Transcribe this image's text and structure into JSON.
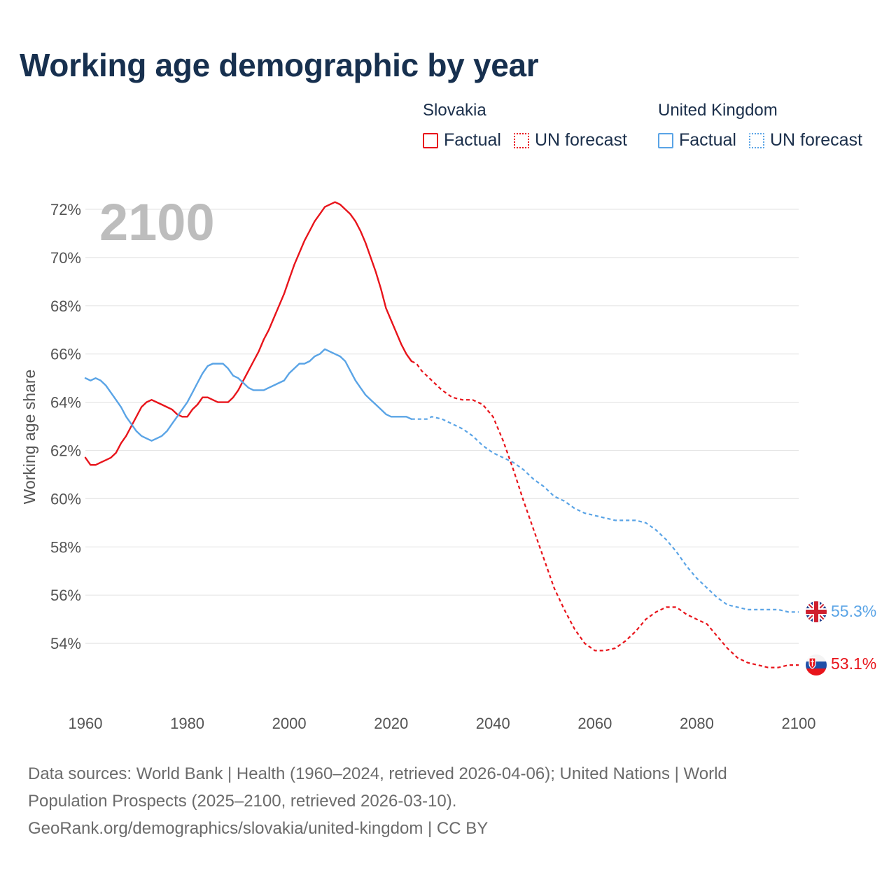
{
  "title": "Working age demographic by year",
  "legend": {
    "groups": [
      {
        "country": "Slovakia",
        "factual_label": "Factual",
        "forecast_label": "UN forecast",
        "color": "#e8141b"
      },
      {
        "country": "United Kingdom",
        "factual_label": "Factual",
        "forecast_label": "UN forecast",
        "color": "#5aa4e6"
      }
    ]
  },
  "footer": {
    "line1": "Data sources: World Bank | Health (1960–2024, retrieved 2026-04-06); United Nations | World",
    "line2": "Population Prospects (2025–2100, retrieved 2026-03-10).",
    "line3": "GeoRank.org/demographics/slovakia/united-kingdom | CC BY"
  },
  "chart_data": {
    "type": "line",
    "title": "Working age demographic by year",
    "year_label": "2100",
    "xlabel": "",
    "ylabel": "Working age share",
    "xlim": [
      1960,
      2100
    ],
    "ylim": [
      52,
      73
    ],
    "x_ticks": [
      "1960",
      "1980",
      "2000",
      "2020",
      "2040",
      "2060",
      "2080",
      "2100"
    ],
    "y_ticks": [
      "54%",
      "56%",
      "58%",
      "60%",
      "62%",
      "64%",
      "66%",
      "68%",
      "70%",
      "72%"
    ],
    "grid": true,
    "factual_range": [
      1960,
      2024
    ],
    "forecast_range": [
      2024,
      2100
    ],
    "series": [
      {
        "name": "Slovakia",
        "color": "#e8141b",
        "end_label": "53.1%",
        "flag": "slovakia-flag",
        "points": [
          [
            1960,
            61.7
          ],
          [
            1961,
            61.4
          ],
          [
            1962,
            61.4
          ],
          [
            1963,
            61.5
          ],
          [
            1964,
            61.6
          ],
          [
            1965,
            61.7
          ],
          [
            1966,
            61.9
          ],
          [
            1967,
            62.3
          ],
          [
            1968,
            62.6
          ],
          [
            1969,
            63.0
          ],
          [
            1970,
            63.4
          ],
          [
            1971,
            63.8
          ],
          [
            1972,
            64.0
          ],
          [
            1973,
            64.1
          ],
          [
            1974,
            64.0
          ],
          [
            1975,
            63.9
          ],
          [
            1976,
            63.8
          ],
          [
            1977,
            63.7
          ],
          [
            1978,
            63.5
          ],
          [
            1979,
            63.4
          ],
          [
            1980,
            63.4
          ],
          [
            1981,
            63.7
          ],
          [
            1982,
            63.9
          ],
          [
            1983,
            64.2
          ],
          [
            1984,
            64.2
          ],
          [
            1985,
            64.1
          ],
          [
            1986,
            64.0
          ],
          [
            1987,
            64.0
          ],
          [
            1988,
            64.0
          ],
          [
            1989,
            64.2
          ],
          [
            1990,
            64.5
          ],
          [
            1991,
            64.9
          ],
          [
            1992,
            65.3
          ],
          [
            1993,
            65.7
          ],
          [
            1994,
            66.1
          ],
          [
            1995,
            66.6
          ],
          [
            1996,
            67.0
          ],
          [
            1997,
            67.5
          ],
          [
            1998,
            68.0
          ],
          [
            1999,
            68.5
          ],
          [
            2000,
            69.1
          ],
          [
            2001,
            69.7
          ],
          [
            2002,
            70.2
          ],
          [
            2003,
            70.7
          ],
          [
            2004,
            71.1
          ],
          [
            2005,
            71.5
          ],
          [
            2006,
            71.8
          ],
          [
            2007,
            72.1
          ],
          [
            2008,
            72.2
          ],
          [
            2009,
            72.3
          ],
          [
            2010,
            72.2
          ],
          [
            2011,
            72.0
          ],
          [
            2012,
            71.8
          ],
          [
            2013,
            71.5
          ],
          [
            2014,
            71.1
          ],
          [
            2015,
            70.6
          ],
          [
            2016,
            70.0
          ],
          [
            2017,
            69.4
          ],
          [
            2018,
            68.7
          ],
          [
            2019,
            67.9
          ],
          [
            2020,
            67.4
          ],
          [
            2021,
            66.9
          ],
          [
            2022,
            66.4
          ],
          [
            2023,
            66.0
          ],
          [
            2024,
            65.7
          ],
          [
            2025,
            65.6
          ],
          [
            2026,
            65.3
          ],
          [
            2028,
            64.9
          ],
          [
            2030,
            64.5
          ],
          [
            2032,
            64.2
          ],
          [
            2034,
            64.1
          ],
          [
            2036,
            64.1
          ],
          [
            2038,
            63.9
          ],
          [
            2040,
            63.4
          ],
          [
            2042,
            62.4
          ],
          [
            2044,
            61.2
          ],
          [
            2046,
            59.9
          ],
          [
            2048,
            58.7
          ],
          [
            2050,
            57.5
          ],
          [
            2052,
            56.3
          ],
          [
            2054,
            55.4
          ],
          [
            2056,
            54.6
          ],
          [
            2058,
            54.0
          ],
          [
            2060,
            53.7
          ],
          [
            2062,
            53.7
          ],
          [
            2064,
            53.8
          ],
          [
            2066,
            54.1
          ],
          [
            2068,
            54.5
          ],
          [
            2070,
            55.0
          ],
          [
            2072,
            55.3
          ],
          [
            2074,
            55.5
          ],
          [
            2076,
            55.5
          ],
          [
            2078,
            55.2
          ],
          [
            2080,
            55.0
          ],
          [
            2082,
            54.8
          ],
          [
            2084,
            54.3
          ],
          [
            2086,
            53.8
          ],
          [
            2088,
            53.4
          ],
          [
            2090,
            53.2
          ],
          [
            2092,
            53.1
          ],
          [
            2094,
            53.0
          ],
          [
            2096,
            53.0
          ],
          [
            2098,
            53.1
          ],
          [
            2100,
            53.1
          ]
        ]
      },
      {
        "name": "United Kingdom",
        "color": "#5aa4e6",
        "end_label": "55.3%",
        "flag": "united-kingdom-flag",
        "points": [
          [
            1960,
            65.0
          ],
          [
            1961,
            64.9
          ],
          [
            1962,
            65.0
          ],
          [
            1963,
            64.9
          ],
          [
            1964,
            64.7
          ],
          [
            1965,
            64.4
          ],
          [
            1966,
            64.1
          ],
          [
            1967,
            63.8
          ],
          [
            1968,
            63.4
          ],
          [
            1969,
            63.1
          ],
          [
            1970,
            62.8
          ],
          [
            1971,
            62.6
          ],
          [
            1972,
            62.5
          ],
          [
            1973,
            62.4
          ],
          [
            1974,
            62.5
          ],
          [
            1975,
            62.6
          ],
          [
            1976,
            62.8
          ],
          [
            1977,
            63.1
          ],
          [
            1978,
            63.4
          ],
          [
            1979,
            63.7
          ],
          [
            1980,
            64.0
          ],
          [
            1981,
            64.4
          ],
          [
            1982,
            64.8
          ],
          [
            1983,
            65.2
          ],
          [
            1984,
            65.5
          ],
          [
            1985,
            65.6
          ],
          [
            1986,
            65.6
          ],
          [
            1987,
            65.6
          ],
          [
            1988,
            65.4
          ],
          [
            1989,
            65.1
          ],
          [
            1990,
            65.0
          ],
          [
            1991,
            64.8
          ],
          [
            1992,
            64.6
          ],
          [
            1993,
            64.5
          ],
          [
            1994,
            64.5
          ],
          [
            1995,
            64.5
          ],
          [
            1996,
            64.6
          ],
          [
            1997,
            64.7
          ],
          [
            1998,
            64.8
          ],
          [
            1999,
            64.9
          ],
          [
            2000,
            65.2
          ],
          [
            2001,
            65.4
          ],
          [
            2002,
            65.6
          ],
          [
            2003,
            65.6
          ],
          [
            2004,
            65.7
          ],
          [
            2005,
            65.9
          ],
          [
            2006,
            66.0
          ],
          [
            2007,
            66.2
          ],
          [
            2008,
            66.1
          ],
          [
            2009,
            66.0
          ],
          [
            2010,
            65.9
          ],
          [
            2011,
            65.7
          ],
          [
            2012,
            65.3
          ],
          [
            2013,
            64.9
          ],
          [
            2014,
            64.6
          ],
          [
            2015,
            64.3
          ],
          [
            2016,
            64.1
          ],
          [
            2017,
            63.9
          ],
          [
            2018,
            63.7
          ],
          [
            2019,
            63.5
          ],
          [
            2020,
            63.4
          ],
          [
            2021,
            63.4
          ],
          [
            2022,
            63.4
          ],
          [
            2023,
            63.4
          ],
          [
            2024,
            63.3
          ],
          [
            2026,
            63.3
          ],
          [
            2027,
            63.3
          ],
          [
            2028,
            63.4
          ],
          [
            2030,
            63.3
          ],
          [
            2032,
            63.1
          ],
          [
            2034,
            62.9
          ],
          [
            2036,
            62.6
          ],
          [
            2038,
            62.2
          ],
          [
            2040,
            61.9
          ],
          [
            2042,
            61.7
          ],
          [
            2044,
            61.5
          ],
          [
            2046,
            61.2
          ],
          [
            2048,
            60.8
          ],
          [
            2050,
            60.5
          ],
          [
            2052,
            60.1
          ],
          [
            2054,
            59.9
          ],
          [
            2056,
            59.6
          ],
          [
            2058,
            59.4
          ],
          [
            2060,
            59.3
          ],
          [
            2062,
            59.2
          ],
          [
            2064,
            59.1
          ],
          [
            2066,
            59.1
          ],
          [
            2068,
            59.1
          ],
          [
            2070,
            59.0
          ],
          [
            2072,
            58.7
          ],
          [
            2074,
            58.3
          ],
          [
            2076,
            57.8
          ],
          [
            2078,
            57.2
          ],
          [
            2080,
            56.7
          ],
          [
            2082,
            56.3
          ],
          [
            2084,
            55.9
          ],
          [
            2086,
            55.6
          ],
          [
            2088,
            55.5
          ],
          [
            2090,
            55.4
          ],
          [
            2092,
            55.4
          ],
          [
            2094,
            55.4
          ],
          [
            2096,
            55.4
          ],
          [
            2098,
            55.3
          ],
          [
            2100,
            55.3
          ]
        ]
      }
    ]
  }
}
